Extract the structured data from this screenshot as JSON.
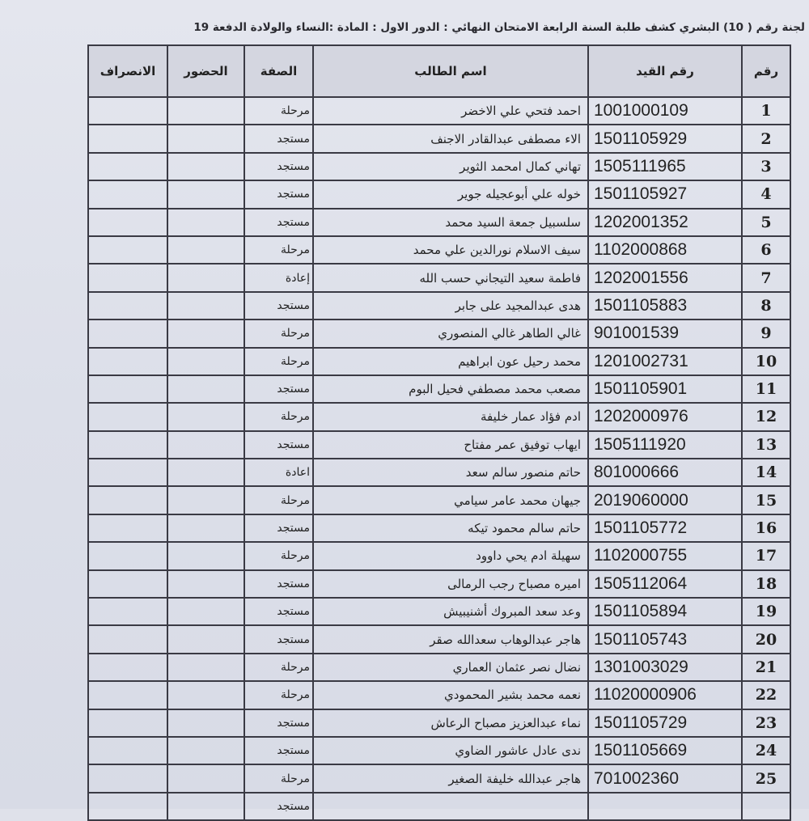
{
  "title": "لجنة رقم ( 10) البشري كشف طلبة السنة الرابعة الامتحان النهائي : الدور الاول : المادة :النساء والولادة الدفعة 19",
  "columns": {
    "num": "رقم",
    "id": "رقم القيد",
    "name": "اسم الطالب",
    "status": "الصفة",
    "attendance": "الحضور",
    "departure": "الانصراف"
  },
  "rows": [
    {
      "num": "1",
      "id": "1001000109",
      "name": "احمد فتحي علي الاخضر",
      "status": "مرحلة"
    },
    {
      "num": "2",
      "id": "1501105929",
      "name": "الاء مصطفى عبدالقادر الاجنف",
      "status": "مستجد"
    },
    {
      "num": "3",
      "id": "1505111965",
      "name": "تهاني كمال امحمد الثوير",
      "status": "مستجد"
    },
    {
      "num": "4",
      "id": "1501105927",
      "name": "خوله علي أبوعجيله جوير",
      "status": "مستجد"
    },
    {
      "num": "5",
      "id": "1202001352",
      "name": "سلسبيل جمعة السيد محمد",
      "status": "مستجد"
    },
    {
      "num": "6",
      "id": "1102000868",
      "name": "سيف الاسلام نورالدين علي محمد",
      "status": "مرحلة"
    },
    {
      "num": "7",
      "id": "1202001556",
      "name": "فاطمة سعيد التيجاني حسب الله",
      "status": "إعادة"
    },
    {
      "num": "8",
      "id": "1501105883",
      "name": "هدى عبدالمجيد على جابر",
      "status": "مستجد"
    },
    {
      "num": "9",
      "id": "901001539",
      "name": "غالي الطاهر غالي المنصوري",
      "status": "مرحلة"
    },
    {
      "num": "10",
      "id": "1201002731",
      "name": "محمد رحيل عون ابراهيم",
      "status": "مرحلة"
    },
    {
      "num": "11",
      "id": "1501105901",
      "name": "مصعب محمد مصطفي فحيل البوم",
      "status": "مستجد"
    },
    {
      "num": "12",
      "id": "1202000976",
      "name": "ادم فؤاد عمار خليفة",
      "status": "مرحلة"
    },
    {
      "num": "13",
      "id": "1505111920",
      "name": "ايهاب توفيق عمر مفتاح",
      "status": "مستجد"
    },
    {
      "num": "14",
      "id": "801000666",
      "name": "حاتم منصور سالم سعد",
      "status": "اعادة"
    },
    {
      "num": "15",
      "id": "2019060000",
      "name": "جيهان محمد عامر سيامي",
      "status": "مرحلة"
    },
    {
      "num": "16",
      "id": "1501105772",
      "name": "حاتم سالم محمود تيكه",
      "status": "مستجد"
    },
    {
      "num": "17",
      "id": "1102000755",
      "name": "سهيلة ادم يحي داوود",
      "status": "مرحلة"
    },
    {
      "num": "18",
      "id": "1505112064",
      "name": "اميره مصباح رجب الرمالى",
      "status": "مستجد"
    },
    {
      "num": "19",
      "id": "1501105894",
      "name": "وعد سعد المبروك أشنيبيش",
      "status": "مستجد"
    },
    {
      "num": "20",
      "id": "1501105743",
      "name": "هاجر عبدالوهاب سعدالله صقر",
      "status": "مستجد"
    },
    {
      "num": "21",
      "id": "1301003029",
      "name": "نضال نصر عثمان العماري",
      "status": "مرحلة"
    },
    {
      "num": "22",
      "id": "11020000906",
      "name": "نعمه محمد بشير المحمودي",
      "status": "مرحلة"
    },
    {
      "num": "23",
      "id": "1501105729",
      "name": "نماء عبدالعزيز مصباح الرعاش",
      "status": "مستجد"
    },
    {
      "num": "24",
      "id": "1501105669",
      "name": "ندى عادل عاشور الضاوي",
      "status": "مستجد"
    },
    {
      "num": "25",
      "id": "701002360",
      "name": "هاجر عبدالله خليفة الصغير",
      "status": "مرحلة"
    },
    {
      "num": "",
      "id": "",
      "name": "",
      "status": "مستجد"
    }
  ]
}
